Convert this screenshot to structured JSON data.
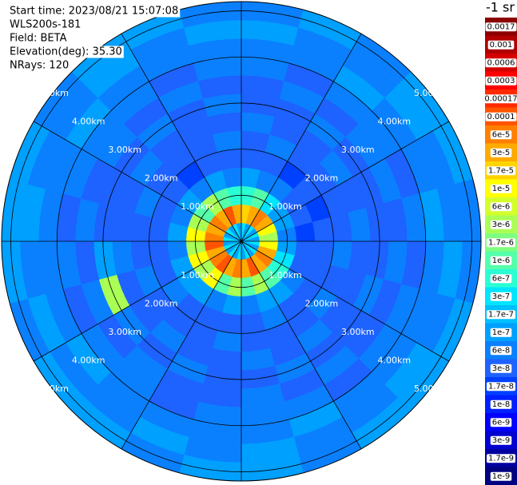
{
  "chart_data": {
    "type": "ppi",
    "header": [
      "Start time: 2023/08/21 15:07:08",
      "WLS200s-181",
      "Field: BETA",
      "Elevation(deg): 35.30",
      "NRays: 120"
    ],
    "colorbar_title": "-1 sr",
    "colorbar": [
      {
        "value": 0.0017,
        "label": "0.0017",
        "color": "#8b0000"
      },
      {
        "value": 0.001,
        "label": "0.001",
        "color": "#b00000"
      },
      {
        "value": 0.0006,
        "label": "0.0006",
        "color": "#d40000"
      },
      {
        "value": 0.0003,
        "label": "0.0003",
        "color": "#ff0000"
      },
      {
        "value": 0.00017,
        "label": "0.00017",
        "color": "#ff2a00"
      },
      {
        "value": 0.0001,
        "label": "0.0001",
        "color": "#ff5500"
      },
      {
        "value": 6e-05,
        "label": "6e-5",
        "color": "#ff7f00"
      },
      {
        "value": 3e-05,
        "label": "3e-5",
        "color": "#ffaa00"
      },
      {
        "value": 1.7e-05,
        "label": "1.7e-5",
        "color": "#ffd400"
      },
      {
        "value": 1e-05,
        "label": "1e-5",
        "color": "#ffff00"
      },
      {
        "value": 6e-06,
        "label": "6e-6",
        "color": "#d4ff2a"
      },
      {
        "value": 3e-06,
        "label": "3e-6",
        "color": "#aaff55"
      },
      {
        "value": 1.7e-06,
        "label": "1.7e-6",
        "color": "#7fff7f"
      },
      {
        "value": 1e-06,
        "label": "1e-6",
        "color": "#55ffaa"
      },
      {
        "value": 6e-07,
        "label": "6e-7",
        "color": "#2affd4"
      },
      {
        "value": 3e-07,
        "label": "3e-7",
        "color": "#00e5ff"
      },
      {
        "value": 1.7e-07,
        "label": "1.7e-7",
        "color": "#00c0ff"
      },
      {
        "value": 1e-07,
        "label": "1e-7",
        "color": "#00a0ff"
      },
      {
        "value": 6e-08,
        "label": "6e-8",
        "color": "#0a80ff"
      },
      {
        "value": 3e-08,
        "label": "3e-8",
        "color": "#1e62ff"
      },
      {
        "value": 1.7e-08,
        "label": "1.7e-8",
        "color": "#0040ff"
      },
      {
        "value": 1e-08,
        "label": "1e-8",
        "color": "#0020ff"
      },
      {
        "value": 6e-09,
        "label": "6e-9",
        "color": "#0000ff"
      },
      {
        "value": 3e-09,
        "label": "3e-9",
        "color": "#0000d0"
      },
      {
        "value": 1.7e-09,
        "label": "1.7e-9",
        "color": "#0000a0"
      },
      {
        "value": 1e-09,
        "label": "1e-9",
        "color": "#000080"
      }
    ],
    "rlim": [
      0,
      5.2
    ],
    "rings": [
      {
        "value": 1,
        "label": "1.00km"
      },
      {
        "value": 2,
        "label": "2.00km"
      },
      {
        "value": 3,
        "label": "3.00km"
      },
      {
        "value": 4,
        "label": "4.00km"
      },
      {
        "value": 5,
        "label": "5.00km"
      }
    ],
    "field": [
      [
        3e-07,
        1.7e-05,
        6e-07,
        1e-07,
        3e-08,
        3e-08,
        6e-08,
        3e-08,
        3e-08,
        6e-08,
        6e-08,
        1e-07,
        6e-08
      ],
      [
        1e-07,
        3e-05,
        1e-06,
        6e-08,
        3e-08,
        6e-08,
        3e-08,
        3e-08,
        6e-08,
        3e-08,
        6e-08,
        6e-08,
        1e-07
      ],
      [
        3e-07,
        6e-05,
        3e-07,
        6e-08,
        1.7e-08,
        3e-08,
        3e-08,
        6e-08,
        3e-08,
        6e-08,
        1e-07,
        6e-08,
        6e-08
      ],
      [
        1e-07,
        3e-05,
        1e-07,
        3e-08,
        3e-08,
        3e-08,
        6e-08,
        3e-08,
        6e-08,
        6e-08,
        6e-08,
        1e-07,
        1e-07
      ],
      [
        3e-07,
        1e-05,
        1e-07,
        3e-08,
        1.7e-08,
        3e-08,
        3e-08,
        3e-08,
        6e-08,
        3e-08,
        6e-08,
        6e-08,
        1e-07
      ],
      [
        1e-07,
        3e-06,
        6e-08,
        1.7e-08,
        3e-08,
        3e-08,
        6e-08,
        3e-08,
        3e-08,
        6e-08,
        1e-07,
        6e-08,
        6e-08
      ],
      [
        3e-07,
        1e-05,
        1e-07,
        3e-08,
        3e-08,
        6e-08,
        3e-08,
        3e-08,
        6e-08,
        3e-08,
        6e-08,
        1e-07,
        6e-08
      ],
      [
        1e-07,
        3e-05,
        3e-07,
        3e-08,
        3e-08,
        3e-08,
        3e-08,
        6e-08,
        3e-08,
        6e-08,
        6e-08,
        6e-08,
        1e-07
      ],
      [
        3e-07,
        6e-05,
        6e-07,
        6e-08,
        3e-08,
        6e-08,
        3e-08,
        3e-08,
        3e-08,
        6e-08,
        6e-08,
        1e-07,
        1e-07
      ],
      [
        1e-07,
        3e-05,
        1e-06,
        1e-07,
        3e-08,
        3e-08,
        6e-08,
        3e-08,
        6e-08,
        3e-08,
        6e-08,
        6e-08,
        1e-07
      ],
      [
        3e-07,
        0.0001,
        3e-06,
        1e-07,
        6e-08,
        3e-08,
        3e-08,
        6e-08,
        3e-08,
        6e-08,
        1e-07,
        6e-08,
        6e-08
      ],
      [
        1e-07,
        3e-05,
        1e-06,
        6e-08,
        3e-08,
        3e-08,
        6e-08,
        3e-08,
        6e-08,
        6e-08,
        6e-08,
        1e-07,
        1e-07
      ],
      [
        3e-07,
        6e-05,
        3e-06,
        1e-07,
        3e-08,
        6e-08,
        3e-08,
        3e-08,
        3e-08,
        6e-08,
        6e-08,
        6e-08,
        1e-07
      ],
      [
        1e-07,
        3e-05,
        1e-06,
        6e-08,
        3e-08,
        3e-08,
        3e-08,
        6e-08,
        3e-08,
        3e-08,
        6e-08,
        1e-07,
        6e-08
      ],
      [
        3e-07,
        0.0001,
        1e-05,
        1e-07,
        3e-08,
        3e-08,
        6e-08,
        3e-08,
        6e-08,
        6e-08,
        6e-08,
        6e-08,
        1e-07
      ],
      [
        1e-07,
        6e-05,
        3e-06,
        1e-07,
        6e-08,
        3e-08,
        3e-08,
        6e-08,
        3e-08,
        6e-08,
        1e-07,
        6e-08,
        1e-07
      ],
      [
        3e-07,
        3e-05,
        1e-05,
        1e-07,
        3e-08,
        6e-08,
        3e-08,
        3e-06,
        6e-08,
        3e-08,
        6e-08,
        1e-07,
        6e-08
      ],
      [
        1e-07,
        0.0001,
        3e-06,
        6e-08,
        3e-08,
        3e-08,
        6e-08,
        1e-07,
        3e-08,
        6e-08,
        6e-08,
        6e-08,
        1e-07
      ],
      [
        3e-07,
        6e-05,
        1e-05,
        1e-07,
        3e-08,
        3e-08,
        3e-08,
        3e-08,
        6e-08,
        3e-08,
        6e-08,
        1e-07,
        1e-07
      ],
      [
        1e-07,
        3e-05,
        3e-06,
        6e-08,
        3e-08,
        6e-08,
        3e-08,
        3e-08,
        3e-08,
        6e-08,
        6e-08,
        6e-08,
        1e-07
      ],
      [
        3e-07,
        6e-05,
        1e-06,
        1e-07,
        3e-08,
        3e-08,
        6e-08,
        3e-08,
        6e-08,
        6e-08,
        1e-07,
        6e-08,
        6e-08
      ],
      [
        1e-07,
        3e-05,
        3e-06,
        6e-08,
        1.7e-08,
        3e-08,
        3e-08,
        6e-08,
        3e-08,
        6e-08,
        6e-08,
        1e-07,
        1e-07
      ],
      [
        3e-07,
        0.0001,
        1e-06,
        1e-07,
        3e-08,
        3e-08,
        3e-08,
        3e-08,
        6e-08,
        3e-08,
        6e-08,
        6e-08,
        1e-07
      ],
      [
        1e-07,
        3e-05,
        6e-07,
        6e-08,
        3e-08,
        6e-08,
        3e-08,
        6e-08,
        3e-08,
        6e-08,
        6e-08,
        1e-07,
        6e-08
      ]
    ]
  }
}
